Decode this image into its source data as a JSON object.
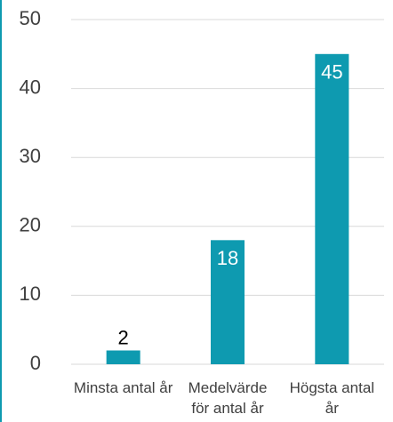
{
  "chart_data": {
    "type": "bar",
    "categories": [
      "Minsta antal år",
      "Medelvärde för antal år",
      "Högsta antal år"
    ],
    "values": [
      2,
      18,
      45
    ],
    "color": "#0e9ab0",
    "ylim": [
      0,
      50
    ],
    "yticks": [
      0,
      10,
      20,
      30,
      40,
      50
    ],
    "grid": true
  }
}
